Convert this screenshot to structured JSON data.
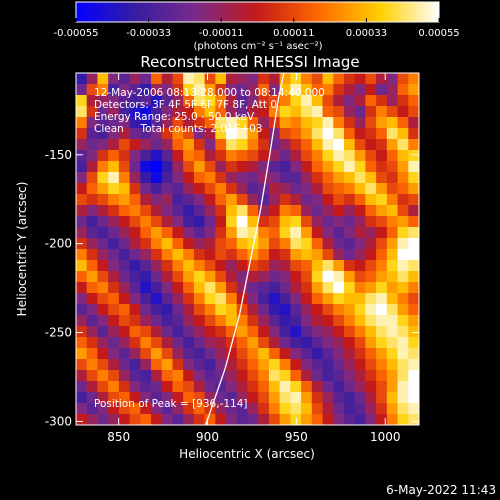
{
  "chart_data": {
    "type": "heatmap",
    "title": "Reconstructed RHESSI Image",
    "xlabel": "Heliocentric X (arcsec)",
    "ylabel": "Heliocentric Y (arcsec)",
    "xlim": [
      826,
      1019
    ],
    "ylim": [
      -302,
      -104
    ],
    "xticks": [
      850,
      900,
      950,
      1000
    ],
    "xtick_labels": [
      "850",
      "900",
      "950",
      "1000"
    ],
    "yticks": [
      -150,
      -200,
      -250,
      -300
    ],
    "ytick_labels": [
      "-150",
      "-200",
      "-250",
      "-300"
    ],
    "colorbar": {
      "range": [
        -0.00055,
        0.00055
      ],
      "ticks": [
        -0.00055,
        -0.00033,
        -0.00011,
        0.00011,
        0.00033,
        0.00055
      ],
      "tick_labels": [
        "-0.00055",
        "-0.00033",
        "-0.00011",
        "0.00011",
        "0.00033",
        "0.00055"
      ],
      "units_label": "(photons cm⁻² s⁻¹ asec⁻²)",
      "colors": [
        "#0000ff",
        "#3a1ea0",
        "#7a2a8a",
        "#c41a1a",
        "#ff6a00",
        "#ffd000",
        "#ffffff"
      ]
    },
    "annotations": [
      "12-May-2006 08:13:28.000 to 08:14:40.000",
      "Detectors: 3F 4F 5F 6F 7F 8F, Att 0",
      "Energy Range: 25.0 - 50.0 keV",
      "Clean     Total counts: 2.01E+03"
    ],
    "peak_label": "Position of Peak = [936,-114]",
    "peak_position": [
      936,
      -114
    ],
    "limb_curve": [
      [
        899,
        -302
      ],
      [
        910,
        -270
      ],
      [
        918,
        -240
      ],
      [
        924,
        -210
      ],
      [
        930,
        -180
      ],
      [
        935,
        -150
      ],
      [
        940,
        -118
      ],
      [
        943,
        -104
      ]
    ],
    "image_values": [
      [
        -0.7,
        -0.2,
        0.6,
        -0.3,
        -0.5,
        -0.2,
        -0.4,
        0.3,
        -0.1,
        0.2,
        0.9,
        0.8,
        0.2,
        0.6,
        -0.1,
        -0.2,
        -0.3,
        0.1,
        -0.1,
        0.5,
        0.7,
        0.4,
        0.2,
        0.6,
        0.3,
        0.1,
        0.0,
        0.2,
        -0.1,
        -0.3,
        0.2,
        0.4
      ],
      [
        -0.4,
        0.2,
        0.4,
        -0.6,
        -0.3,
        -0.5,
        -0.7,
        -0.2,
        -0.3,
        0.1,
        0.7,
        0.9,
        0.5,
        0.1,
        -0.3,
        -0.4,
        -0.2,
        0.3,
        -0.3,
        0.6,
        0.9,
        0.6,
        0.3,
        0.4,
        0.1,
        -0.1,
        -0.3,
        0.0,
        -0.4,
        -0.2,
        0.3,
        0.5
      ],
      [
        0.7,
        -0.1,
        -0.2,
        -0.3,
        -0.5,
        -0.6,
        -0.5,
        -0.8,
        -0.5,
        -0.2,
        0.3,
        0.8,
        0.7,
        0.4,
        -0.1,
        -0.5,
        -0.3,
        0.1,
        0.2,
        0.4,
        0.7,
        0.9,
        0.6,
        0.2,
        -0.1,
        -0.3,
        -0.1,
        0.3,
        0.1,
        -0.2,
        0.1,
        0.3
      ],
      [
        0.8,
        0.1,
        -0.4,
        -0.2,
        -0.6,
        -0.8,
        -0.9,
        -0.6,
        -0.3,
        -0.1,
        0.0,
        0.4,
        0.6,
        0.3,
        -0.2,
        -0.4,
        -0.1,
        0.0,
        0.4,
        0.7,
        0.6,
        0.8,
        0.9,
        0.3,
        0.2,
        -0.2,
        -0.4,
        0.1,
        0.4,
        0.2,
        0.0,
        0.2
      ],
      [
        0.4,
        -0.3,
        -0.5,
        -0.4,
        -0.3,
        -0.7,
        -0.8,
        -0.5,
        -0.2,
        0.2,
        -0.1,
        0.1,
        0.3,
        0.8,
        0.9,
        0.7,
        0.3,
        -0.2,
        0.1,
        0.5,
        0.4,
        0.6,
        0.7,
        0.9,
        0.4,
        0.1,
        -0.2,
        0.2,
        0.5,
        0.6,
        0.3,
        -0.1
      ],
      [
        0.1,
        -0.5,
        -0.6,
        -0.3,
        -0.1,
        -0.4,
        -0.5,
        -0.3,
        0.1,
        0.4,
        0.2,
        -0.3,
        -0.1,
        0.7,
        1.0,
        0.9,
        0.5,
        0.0,
        -0.3,
        0.2,
        0.3,
        0.5,
        0.8,
        1.0,
        0.8,
        0.3,
        0.0,
        0.1,
        0.3,
        0.8,
        0.6,
        0.1
      ],
      [
        -0.2,
        -0.4,
        -0.3,
        -0.1,
        0.2,
        0.0,
        -0.2,
        -0.4,
        -0.2,
        0.3,
        0.5,
        0.1,
        -0.3,
        0.3,
        0.8,
        0.7,
        0.4,
        0.1,
        -0.4,
        -0.2,
        0.1,
        0.3,
        0.6,
        0.9,
        1.0,
        0.6,
        0.2,
        0.0,
        0.1,
        0.5,
        0.8,
        0.4
      ],
      [
        -0.5,
        -0.3,
        0.1,
        0.3,
        0.1,
        -0.3,
        -0.6,
        -0.8,
        -0.5,
        0.0,
        0.4,
        0.3,
        -0.1,
        0.1,
        0.4,
        0.3,
        0.2,
        0.0,
        -0.2,
        -0.4,
        -0.1,
        0.2,
        0.4,
        0.7,
        0.9,
        0.8,
        0.5,
        0.2,
        0.0,
        0.3,
        0.6,
        0.7
      ],
      [
        -0.6,
        -0.1,
        0.4,
        0.6,
        0.2,
        -0.4,
        -0.9,
        -1.0,
        -0.7,
        -0.2,
        0.2,
        0.5,
        0.2,
        -0.2,
        0.1,
        0.0,
        -0.1,
        -0.3,
        -0.5,
        -0.6,
        -0.3,
        0.0,
        0.3,
        0.5,
        0.7,
        0.9,
        0.7,
        0.3,
        0.1,
        0.2,
        0.5,
        0.9
      ],
      [
        -0.3,
        0.2,
        0.7,
        0.9,
        0.4,
        -0.2,
        -0.7,
        -0.9,
        -0.6,
        -0.3,
        0.0,
        0.3,
        0.4,
        0.1,
        -0.2,
        -0.3,
        -0.4,
        -0.2,
        -0.3,
        -0.5,
        -0.5,
        -0.2,
        0.1,
        0.3,
        0.5,
        0.6,
        0.8,
        0.6,
        0.2,
        0.1,
        0.4,
        0.7
      ],
      [
        0.0,
        0.3,
        0.5,
        0.7,
        0.6,
        0.1,
        -0.4,
        -0.6,
        -0.4,
        -0.5,
        -0.2,
        0.0,
        0.2,
        0.4,
        0.1,
        -0.2,
        -0.5,
        -0.4,
        -0.1,
        -0.2,
        -0.4,
        -0.3,
        -0.1,
        0.2,
        0.3,
        0.4,
        0.6,
        0.8,
        0.5,
        0.2,
        0.3,
        0.5
      ],
      [
        0.2,
        0.1,
        0.2,
        0.4,
        0.5,
        0.3,
        -0.1,
        -0.3,
        -0.2,
        -0.6,
        -0.5,
        -0.3,
        0.0,
        0.3,
        0.5,
        0.2,
        -0.2,
        -0.5,
        -0.2,
        0.1,
        -0.1,
        -0.4,
        -0.3,
        0.0,
        0.2,
        0.1,
        0.3,
        0.6,
        0.7,
        0.4,
        0.1,
        0.2
      ],
      [
        -0.1,
        -0.3,
        -0.1,
        0.1,
        0.3,
        0.4,
        0.2,
        -0.1,
        -0.3,
        -0.5,
        -0.7,
        -0.5,
        -0.2,
        0.1,
        0.6,
        0.8,
        0.3,
        -0.2,
        0.0,
        0.4,
        0.3,
        -0.2,
        -0.4,
        -0.2,
        0.0,
        -0.2,
        0.0,
        0.3,
        0.5,
        0.6,
        0.2,
        -0.1
      ],
      [
        -0.4,
        -0.6,
        -0.4,
        -0.2,
        0.0,
        0.2,
        0.4,
        0.2,
        -0.1,
        -0.3,
        -0.6,
        -0.7,
        -0.4,
        0.0,
        0.7,
        1.0,
        0.6,
        0.1,
        0.2,
        0.6,
        0.7,
        0.2,
        -0.2,
        -0.4,
        -0.3,
        -0.4,
        -0.2,
        0.1,
        0.2,
        0.4,
        0.5,
        0.3
      ],
      [
        -0.2,
        -0.5,
        -0.6,
        -0.4,
        -0.2,
        0.0,
        0.3,
        0.5,
        0.3,
        0.0,
        -0.3,
        -0.5,
        -0.3,
        0.1,
        0.5,
        0.9,
        0.8,
        0.4,
        0.3,
        0.7,
        0.9,
        0.5,
        0.0,
        -0.3,
        -0.5,
        -0.3,
        -0.1,
        -0.2,
        0.0,
        0.3,
        0.7,
        0.8
      ],
      [
        0.1,
        -0.2,
        -0.4,
        -0.6,
        -0.4,
        -0.1,
        0.1,
        0.4,
        0.6,
        0.3,
        0.0,
        -0.2,
        -0.1,
        0.2,
        0.3,
        0.6,
        0.7,
        0.5,
        0.2,
        0.4,
        0.8,
        0.7,
        0.3,
        -0.1,
        -0.4,
        -0.5,
        -0.3,
        -0.1,
        0.2,
        0.5,
        0.9,
        1.0
      ],
      [
        0.4,
        0.1,
        -0.2,
        -0.4,
        -0.6,
        -0.4,
        -0.2,
        0.1,
        0.4,
        0.6,
        0.4,
        0.1,
        0.0,
        0.2,
        0.1,
        0.3,
        0.5,
        0.3,
        0.0,
        0.1,
        0.5,
        0.6,
        0.5,
        0.2,
        -0.2,
        -0.4,
        -0.2,
        0.0,
        0.3,
        0.6,
        1.0,
        1.0
      ],
      [
        0.6,
        0.3,
        0.0,
        -0.3,
        -0.5,
        -0.7,
        -0.5,
        -0.2,
        0.1,
        0.4,
        0.6,
        0.4,
        0.2,
        0.0,
        -0.2,
        0.0,
        0.2,
        0.1,
        -0.2,
        -0.1,
        0.2,
        0.3,
        0.6,
        0.8,
        0.5,
        0.1,
        0.0,
        0.2,
        0.4,
        0.7,
        0.9,
        0.8
      ],
      [
        0.3,
        0.5,
        0.2,
        -0.1,
        -0.4,
        -0.6,
        -0.7,
        -0.4,
        -0.1,
        0.2,
        0.5,
        0.7,
        0.5,
        0.2,
        -0.1,
        -0.3,
        -0.1,
        -0.2,
        -0.4,
        -0.3,
        0.0,
        0.2,
        0.7,
        1.0,
        0.9,
        0.5,
        0.2,
        0.3,
        0.5,
        0.6,
        0.8,
        0.6
      ],
      [
        0.0,
        0.3,
        0.4,
        0.1,
        -0.2,
        -0.5,
        -0.8,
        -0.6,
        -0.3,
        0.0,
        0.3,
        0.6,
        0.8,
        0.5,
        0.1,
        -0.2,
        -0.4,
        -0.5,
        -0.6,
        -0.4,
        -0.1,
        0.1,
        0.5,
        0.8,
        1.0,
        0.7,
        0.4,
        0.5,
        0.7,
        0.5,
        0.6,
        0.4
      ],
      [
        -0.3,
        0.0,
        0.2,
        0.3,
        0.0,
        -0.3,
        -0.6,
        -0.8,
        -0.5,
        -0.2,
        0.1,
        0.4,
        0.7,
        0.8,
        0.4,
        0.0,
        -0.3,
        -0.6,
        -0.8,
        -0.6,
        -0.3,
        0.0,
        0.3,
        0.5,
        0.7,
        0.6,
        0.6,
        0.8,
        0.9,
        0.6,
        0.4,
        0.2
      ],
      [
        -0.5,
        -0.3,
        0.0,
        0.2,
        0.3,
        0.0,
        -0.4,
        -0.6,
        -0.7,
        -0.4,
        -0.1,
        0.2,
        0.4,
        0.7,
        0.6,
        0.2,
        -0.1,
        -0.4,
        -0.7,
        -0.8,
        -0.5,
        -0.2,
        0.0,
        0.2,
        0.4,
        0.5,
        0.7,
        0.9,
        1.0,
        0.8,
        0.5,
        0.3
      ],
      [
        -0.2,
        -0.5,
        -0.3,
        0.0,
        0.2,
        0.1,
        -0.2,
        -0.4,
        -0.6,
        -0.5,
        -0.2,
        0.0,
        0.2,
        0.4,
        0.6,
        0.4,
        0.1,
        -0.2,
        -0.5,
        -0.7,
        -0.6,
        -0.3,
        -0.1,
        0.0,
        0.2,
        0.4,
        0.6,
        0.8,
        0.9,
        0.9,
        0.7,
        0.5
      ],
      [
        0.1,
        -0.2,
        -0.5,
        -0.2,
        0.0,
        0.3,
        0.2,
        -0.1,
        -0.4,
        -0.6,
        -0.4,
        -0.2,
        0.0,
        0.1,
        0.3,
        0.5,
        0.3,
        0.0,
        -0.3,
        -0.6,
        -0.8,
        -0.5,
        -0.3,
        -0.2,
        0.0,
        0.2,
        0.4,
        0.6,
        0.8,
        0.9,
        0.8,
        0.6
      ],
      [
        0.3,
        0.1,
        -0.2,
        -0.4,
        -0.2,
        0.1,
        0.4,
        0.2,
        -0.1,
        -0.4,
        -0.6,
        -0.4,
        -0.2,
        -0.1,
        0.1,
        0.3,
        0.5,
        0.2,
        -0.1,
        -0.4,
        -0.6,
        -0.7,
        -0.5,
        -0.3,
        -0.2,
        0.0,
        0.2,
        0.5,
        0.7,
        0.8,
        0.9,
        0.7
      ],
      [
        0.5,
        0.3,
        0.0,
        -0.3,
        -0.5,
        -0.2,
        0.2,
        0.5,
        0.2,
        -0.2,
        -0.5,
        -0.6,
        -0.4,
        -0.2,
        0.0,
        0.2,
        0.4,
        0.6,
        0.3,
        0.0,
        -0.3,
        -0.5,
        -0.7,
        -0.5,
        -0.3,
        -0.1,
        0.1,
        0.3,
        0.5,
        0.7,
        0.9,
        0.8
      ],
      [
        0.2,
        0.4,
        0.2,
        -0.1,
        -0.4,
        -0.6,
        -0.2,
        0.3,
        0.5,
        0.1,
        -0.3,
        -0.5,
        -0.6,
        -0.3,
        -0.1,
        0.1,
        0.3,
        0.5,
        0.7,
        0.4,
        0.0,
        -0.3,
        -0.5,
        -0.6,
        -0.4,
        -0.2,
        0.0,
        0.2,
        0.4,
        0.6,
        0.8,
        0.9
      ],
      [
        -0.1,
        0.2,
        0.4,
        0.2,
        -0.2,
        -0.5,
        -0.6,
        -0.1,
        0.3,
        0.4,
        0.0,
        -0.3,
        -0.5,
        -0.4,
        -0.2,
        0.0,
        0.2,
        0.4,
        0.8,
        0.7,
        0.3,
        -0.1,
        -0.4,
        -0.6,
        -0.5,
        -0.3,
        -0.1,
        0.1,
        0.3,
        0.5,
        0.8,
        1.0
      ],
      [
        -0.4,
        -0.1,
        0.2,
        0.4,
        0.1,
        -0.3,
        -0.5,
        -0.4,
        0.0,
        0.3,
        0.2,
        -0.1,
        -0.4,
        -0.5,
        -0.3,
        -0.1,
        0.1,
        0.3,
        0.6,
        0.9,
        0.7,
        0.3,
        -0.1,
        -0.4,
        -0.6,
        -0.4,
        -0.2,
        0.0,
        0.2,
        0.5,
        0.9,
        1.0
      ],
      [
        -0.6,
        -0.4,
        -0.1,
        0.2,
        0.3,
        0.0,
        -0.3,
        -0.5,
        -0.3,
        0.0,
        0.3,
        0.2,
        -0.2,
        -0.4,
        -0.5,
        -0.2,
        0.0,
        0.2,
        0.5,
        0.8,
        0.9,
        0.5,
        0.1,
        -0.2,
        -0.5,
        -0.6,
        -0.4,
        -0.1,
        0.2,
        0.6,
        0.9,
        1.0
      ],
      [
        -0.3,
        -0.5,
        -0.3,
        0.0,
        0.2,
        0.3,
        0.0,
        -0.3,
        -0.5,
        -0.2,
        0.1,
        0.3,
        0.1,
        -0.2,
        -0.4,
        -0.5,
        -0.2,
        0.1,
        0.4,
        0.7,
        0.8,
        0.6,
        0.2,
        -0.1,
        -0.4,
        -0.6,
        -0.5,
        -0.2,
        0.1,
        0.5,
        0.8,
        0.9
      ],
      [
        0.0,
        -0.2,
        -0.4,
        -0.2,
        0.0,
        0.2,
        0.3,
        0.0,
        -0.3,
        -0.5,
        -0.2,
        0.1,
        0.3,
        0.0,
        -0.3,
        -0.5,
        -0.4,
        -0.1,
        0.2,
        0.5,
        0.7,
        0.5,
        0.3,
        0.0,
        -0.3,
        -0.5,
        -0.6,
        -0.3,
        0.0,
        0.4,
        0.7,
        0.8
      ]
    ]
  },
  "timestamp": "6-May-2022 11:43"
}
